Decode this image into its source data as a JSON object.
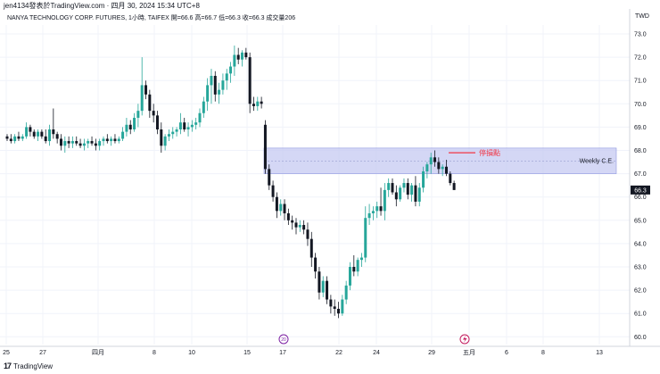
{
  "header": {
    "published_by": "jen4134發表於TradingView.com",
    "timestamp": "四月 30, 2024 15:34 UTC+8"
  },
  "legend": {
    "symbol": "NANYA TECHNOLOGY CORP. FUTURES, 1小時, TAIFEX",
    "open": "開=66.6",
    "high": "高=66.7",
    "low": "低=66.3",
    "close": "收=66.3",
    "volume": "成交量206"
  },
  "currency": "TWD",
  "footer": {
    "brand": "TradingView",
    "logo_icon": "tradingview-logo-icon"
  },
  "colors": {
    "up": "#26a69a",
    "down": "#131722",
    "zone_fill": "#c5c9f2",
    "zone_border": "#9098e0",
    "stop_line": "#f23645",
    "last_price_bg": "#131722"
  },
  "chart_data": {
    "type": "candlestick",
    "y_axis": {
      "min": 60.0,
      "max": 73.0,
      "step": 1.0,
      "ticks": [
        "73.0",
        "72.0",
        "71.0",
        "70.0",
        "69.0",
        "68.0",
        "67.0",
        "66.0",
        "65.0",
        "64.0",
        "63.0",
        "62.0",
        "61.0",
        "60.0"
      ]
    },
    "x_axis": {
      "ticks": [
        "25",
        "27",
        "四月",
        "8",
        "10",
        "15",
        "17",
        "22",
        "24",
        "29",
        "五月",
        "6",
        "8",
        "13"
      ]
    },
    "last_price": {
      "value": 66.3,
      "label": "66.3"
    },
    "zones": [
      {
        "label": "Weekly C.E.",
        "top": 68.1,
        "bottom": 67.0,
        "mid": 67.55
      }
    ],
    "annotations": [
      {
        "label": "停損點",
        "value": 67.9
      }
    ],
    "event_markers": [
      {
        "label": "20",
        "icon": "dividend-icon"
      },
      {
        "label": "",
        "icon": "earnings-icon"
      }
    ],
    "candles": [
      [
        68.6,
        68.7,
        68.4,
        68.5
      ],
      [
        68.5,
        68.7,
        68.3,
        68.4
      ],
      [
        68.4,
        68.7,
        68.3,
        68.6
      ],
      [
        68.6,
        68.8,
        68.4,
        68.5
      ],
      [
        68.5,
        68.7,
        68.4,
        68.6
      ],
      [
        68.6,
        69.2,
        68.5,
        69.0
      ],
      [
        69.0,
        69.1,
        68.6,
        68.8
      ],
      [
        68.8,
        68.9,
        68.5,
        68.6
      ],
      [
        68.6,
        68.9,
        68.4,
        68.8
      ],
      [
        68.8,
        68.9,
        68.5,
        68.6
      ],
      [
        68.6,
        68.9,
        68.3,
        68.4
      ],
      [
        68.4,
        69.1,
        68.2,
        68.9
      ],
      [
        68.9,
        69.8,
        68.5,
        68.7
      ],
      [
        68.7,
        68.8,
        68.3,
        68.5
      ],
      [
        68.5,
        68.7,
        68.0,
        68.2
      ],
      [
        68.2,
        68.6,
        67.9,
        68.4
      ],
      [
        68.4,
        68.6,
        68.1,
        68.3
      ],
      [
        68.3,
        68.6,
        68.1,
        68.4
      ],
      [
        68.4,
        68.6,
        68.2,
        68.3
      ],
      [
        68.3,
        68.5,
        68.1,
        68.2
      ],
      [
        68.2,
        68.5,
        68.0,
        68.3
      ],
      [
        68.3,
        68.5,
        68.1,
        68.4
      ],
      [
        68.4,
        68.6,
        68.2,
        68.3
      ],
      [
        68.3,
        68.5,
        68.0,
        68.2
      ],
      [
        68.2,
        68.5,
        68.0,
        68.4
      ],
      [
        68.4,
        68.6,
        68.2,
        68.5
      ],
      [
        68.5,
        68.7,
        68.3,
        68.4
      ],
      [
        68.4,
        68.6,
        68.2,
        68.5
      ],
      [
        68.5,
        68.7,
        68.3,
        68.4
      ],
      [
        68.4,
        68.6,
        68.3,
        68.5
      ],
      [
        68.5,
        69.0,
        68.4,
        68.8
      ],
      [
        68.8,
        69.4,
        68.6,
        69.1
      ],
      [
        69.1,
        69.3,
        68.7,
        68.9
      ],
      [
        68.9,
        69.6,
        68.8,
        69.4
      ],
      [
        69.4,
        70.0,
        69.0,
        69.7
      ],
      [
        69.7,
        72.0,
        69.5,
        70.8
      ],
      [
        70.8,
        71.0,
        70.2,
        70.4
      ],
      [
        70.4,
        70.6,
        69.4,
        69.7
      ],
      [
        69.7,
        70.0,
        69.2,
        69.5
      ],
      [
        69.5,
        69.7,
        68.7,
        68.9
      ],
      [
        68.9,
        69.2,
        67.9,
        68.2
      ],
      [
        68.2,
        68.7,
        68.0,
        68.6
      ],
      [
        68.6,
        68.9,
        68.4,
        68.7
      ],
      [
        68.7,
        69.0,
        68.5,
        68.8
      ],
      [
        68.8,
        69.0,
        68.6,
        68.9
      ],
      [
        68.9,
        69.6,
        68.7,
        69.2
      ],
      [
        69.2,
        69.4,
        68.8,
        68.9
      ],
      [
        68.9,
        69.2,
        68.6,
        69.0
      ],
      [
        69.0,
        69.3,
        68.8,
        69.1
      ],
      [
        69.1,
        69.4,
        68.9,
        69.2
      ],
      [
        69.2,
        69.8,
        69.0,
        69.6
      ],
      [
        69.6,
        70.3,
        69.4,
        70.1
      ],
      [
        70.1,
        71.1,
        69.7,
        70.8
      ],
      [
        70.8,
        71.5,
        70.0,
        71.2
      ],
      [
        71.2,
        71.4,
        70.1,
        70.4
      ],
      [
        70.4,
        70.9,
        70.0,
        70.6
      ],
      [
        70.6,
        71.3,
        70.4,
        71.0
      ],
      [
        71.0,
        71.5,
        70.6,
        71.3
      ],
      [
        71.3,
        71.8,
        70.9,
        71.6
      ],
      [
        71.6,
        72.5,
        71.2,
        72.1
      ],
      [
        72.1,
        72.4,
        71.7,
        71.9
      ],
      [
        71.9,
        72.3,
        71.6,
        72.2
      ],
      [
        72.2,
        72.4,
        71.9,
        72.0
      ],
      [
        72.0,
        72.2,
        69.6,
        70.0
      ],
      [
        70.0,
        70.3,
        69.7,
        69.9
      ],
      [
        69.9,
        70.3,
        69.7,
        70.1
      ],
      [
        70.1,
        70.3,
        69.8,
        70.0
      ],
      [
        69.1,
        69.3,
        67.0,
        67.2
      ],
      [
        67.2,
        67.4,
        66.3,
        66.5
      ],
      [
        66.5,
        66.7,
        65.8,
        66.0
      ],
      [
        66.0,
        66.2,
        65.1,
        65.4
      ],
      [
        65.4,
        65.9,
        65.2,
        65.7
      ],
      [
        65.7,
        65.9,
        65.0,
        65.3
      ],
      [
        65.3,
        65.5,
        64.8,
        65.0
      ],
      [
        65.0,
        65.2,
        64.6,
        64.9
      ],
      [
        64.9,
        65.1,
        64.4,
        64.7
      ],
      [
        64.7,
        65.0,
        64.5,
        64.8
      ],
      [
        64.8,
        65.0,
        64.4,
        64.6
      ],
      [
        64.6,
        64.9,
        63.9,
        64.2
      ],
      [
        64.2,
        64.5,
        63.0,
        63.4
      ],
      [
        63.4,
        63.6,
        62.5,
        62.8
      ],
      [
        62.8,
        63.0,
        61.6,
        61.9
      ],
      [
        61.9,
        62.6,
        61.7,
        62.4
      ],
      [
        62.4,
        62.6,
        61.4,
        61.6
      ],
      [
        61.6,
        61.8,
        61.0,
        61.3
      ],
      [
        61.3,
        61.6,
        60.9,
        61.2
      ],
      [
        61.2,
        61.5,
        60.8,
        61.0
      ],
      [
        61.0,
        61.8,
        60.9,
        61.6
      ],
      [
        61.6,
        62.4,
        61.4,
        62.2
      ],
      [
        62.2,
        63.2,
        62.0,
        63.0
      ],
      [
        63.0,
        63.5,
        62.6,
        62.8
      ],
      [
        62.8,
        63.4,
        62.6,
        63.3
      ],
      [
        63.3,
        63.6,
        63.0,
        63.4
      ],
      [
        63.4,
        65.6,
        63.2,
        65.1
      ],
      [
        65.1,
        65.7,
        64.8,
        65.3
      ],
      [
        65.3,
        65.6,
        65.0,
        65.4
      ],
      [
        65.4,
        65.8,
        65.1,
        65.6
      ],
      [
        65.6,
        66.4,
        65.2,
        65.4
      ],
      [
        65.4,
        66.6,
        65.0,
        66.3
      ],
      [
        66.3,
        66.8,
        66.0,
        66.6
      ],
      [
        66.6,
        66.8,
        66.1,
        66.2
      ],
      [
        66.2,
        66.5,
        65.6,
        65.9
      ],
      [
        65.9,
        66.5,
        65.8,
        66.4
      ],
      [
        66.4,
        66.8,
        66.2,
        66.6
      ],
      [
        66.6,
        66.8,
        65.9,
        66.1
      ],
      [
        66.1,
        66.6,
        65.8,
        66.5
      ],
      [
        66.5,
        66.9,
        65.6,
        65.8
      ],
      [
        65.8,
        66.6,
        65.6,
        66.4
      ],
      [
        66.4,
        67.3,
        66.2,
        67.1
      ],
      [
        67.1,
        67.5,
        66.8,
        67.4
      ],
      [
        67.4,
        67.9,
        67.0,
        67.7
      ],
      [
        67.7,
        68.0,
        67.3,
        67.5
      ],
      [
        67.5,
        67.7,
        67.0,
        67.2
      ],
      [
        67.2,
        67.4,
        66.9,
        67.3
      ],
      [
        67.3,
        67.6,
        66.9,
        67.0
      ],
      [
        67.0,
        67.1,
        66.5,
        66.6
      ],
      [
        66.6,
        66.7,
        66.3,
        66.3
      ]
    ]
  }
}
